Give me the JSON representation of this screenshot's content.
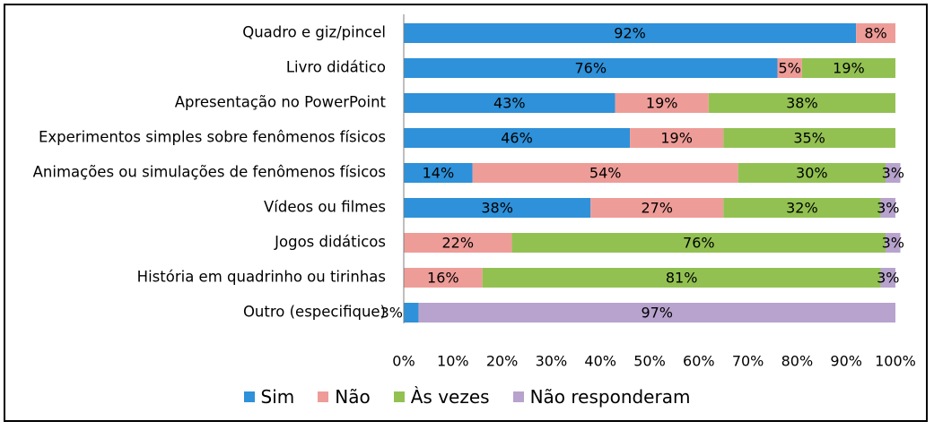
{
  "chart_data": {
    "type": "bar",
    "orientation": "horizontal",
    "stacked": true,
    "categories": [
      "Quadro e giz/pincel",
      "Livro didático",
      "Apresentação no PowerPoint",
      "Experimentos simples sobre fenômenos físicos",
      "Animações ou simulações de fenômenos físicos",
      "Vídeos ou filmes",
      "Jogos didáticos",
      "História em quadrinho ou tirinhas",
      "Outro (especifique)"
    ],
    "series": [
      {
        "name": "Sim",
        "color": "#2E91D9",
        "values": [
          92,
          76,
          43,
          46,
          14,
          38,
          0,
          0,
          3
        ]
      },
      {
        "name": "Não",
        "color": "#EE9C98",
        "values": [
          8,
          5,
          19,
          19,
          54,
          27,
          22,
          16,
          0
        ]
      },
      {
        "name": "Às vezes",
        "color": "#92C152",
        "values": [
          0,
          19,
          38,
          35,
          30,
          32,
          76,
          81,
          0
        ]
      },
      {
        "name": "Não responderam",
        "color": "#B7A3CD",
        "values": [
          0,
          0,
          0,
          0,
          3,
          3,
          3,
          3,
          97
        ]
      }
    ],
    "x_ticks": [
      "0%",
      "10%",
      "20%",
      "30%",
      "40%",
      "50%",
      "60%",
      "70%",
      "80%",
      "90%",
      "100%"
    ],
    "xlim": [
      0,
      100
    ],
    "unit": "%",
    "grid": false,
    "legend_position": "bottom"
  }
}
